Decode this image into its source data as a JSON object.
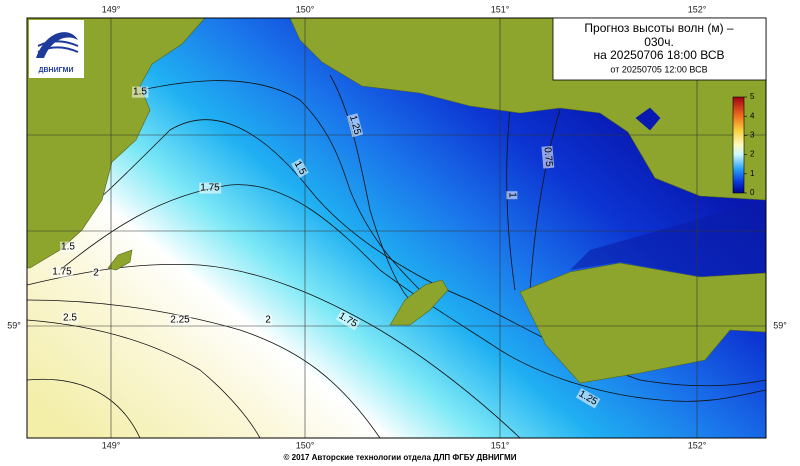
{
  "logo": {
    "text": "ДВНИГМИ"
  },
  "title": {
    "lines": [
      "Прогноз высоты волн (м) –",
      "030ч.",
      "на 20250706 18:00 ВСВ",
      "от 20250705 12:00 ВСВ"
    ]
  },
  "longitudes": {
    "top": [
      "149°",
      "150°",
      "151°",
      "152°"
    ],
    "bottom": [
      "149°",
      "150°",
      "151°",
      "152°"
    ]
  },
  "latitudes": {
    "left": [
      "59°"
    ],
    "right": [
      "59°"
    ]
  },
  "colorbar": {
    "lim": [
      0,
      5
    ],
    "ticks": [
      0,
      1,
      2,
      3,
      4,
      5
    ]
  },
  "contour_labels": [
    "1.5",
    "1.25",
    "1.5",
    "1.75",
    "1",
    "0.75",
    "1.5",
    "1.75",
    "2",
    "2.5",
    "2.25",
    "2",
    "1.75",
    "1.25"
  ],
  "footer": "© 2017 Авторские технологии отдела ДЛП ФГБУ ДВНИГМИ"
}
